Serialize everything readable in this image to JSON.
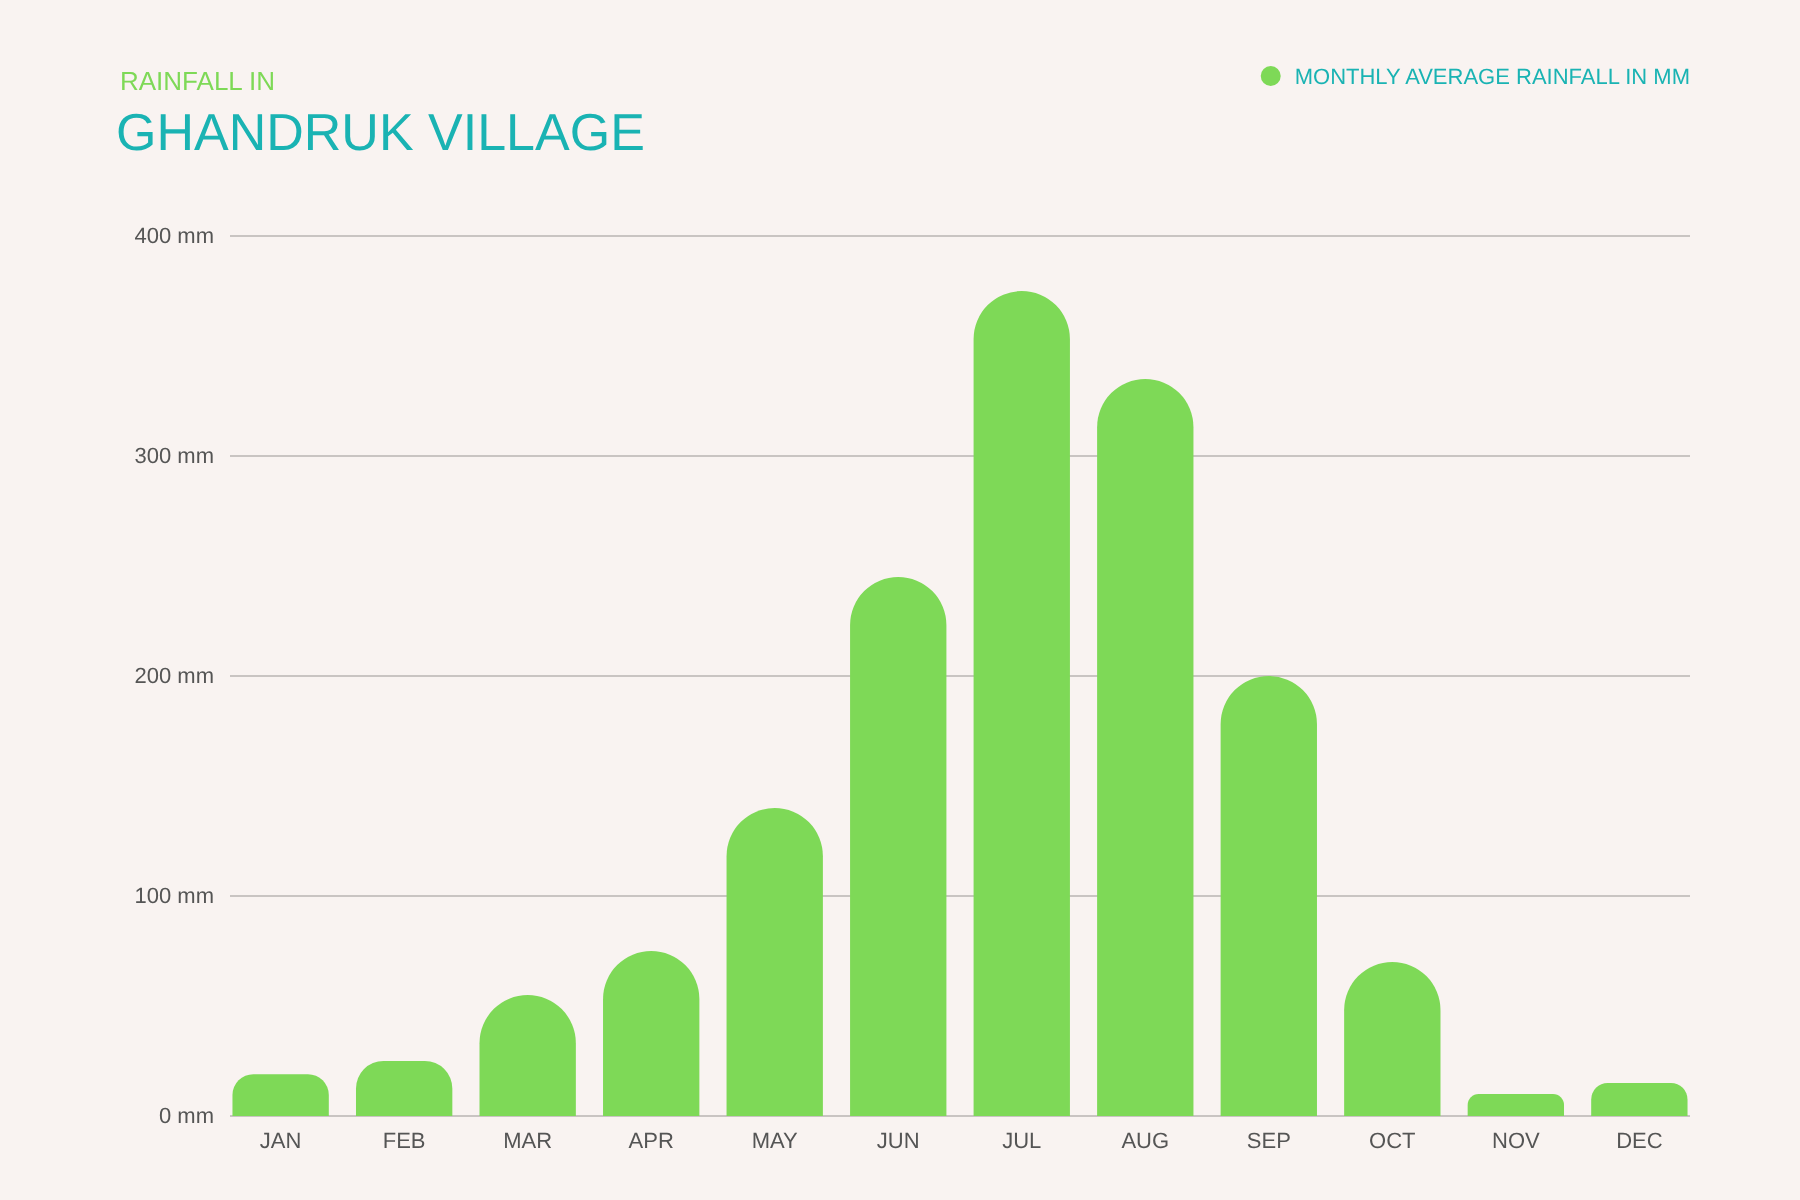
{
  "chart_data": {
    "type": "bar",
    "title": "GHANDRUK VILLAGE",
    "subtitle": "RAINFALL IN",
    "categories": [
      "JAN",
      "FEB",
      "MAR",
      "APR",
      "MAY",
      "JUN",
      "JUL",
      "AUG",
      "SEP",
      "OCT",
      "NOV",
      "DEC"
    ],
    "series": [
      {
        "name": "MONTHLY AVERAGE RAINFALL IN MM",
        "color": "#7ed957",
        "values": [
          19,
          25,
          55,
          75,
          140,
          245,
          375,
          335,
          200,
          70,
          10,
          15
        ]
      }
    ],
    "ylim": [
      0,
      400
    ],
    "yticks": [
      {
        "value": 0,
        "label": "0 mm"
      },
      {
        "value": 100,
        "label": "100 mm"
      },
      {
        "value": 200,
        "label": "200 mm"
      },
      {
        "value": 300,
        "label": "300 mm"
      },
      {
        "value": 400,
        "label": "400 mm"
      }
    ],
    "grid": "y",
    "legend": "top right"
  }
}
